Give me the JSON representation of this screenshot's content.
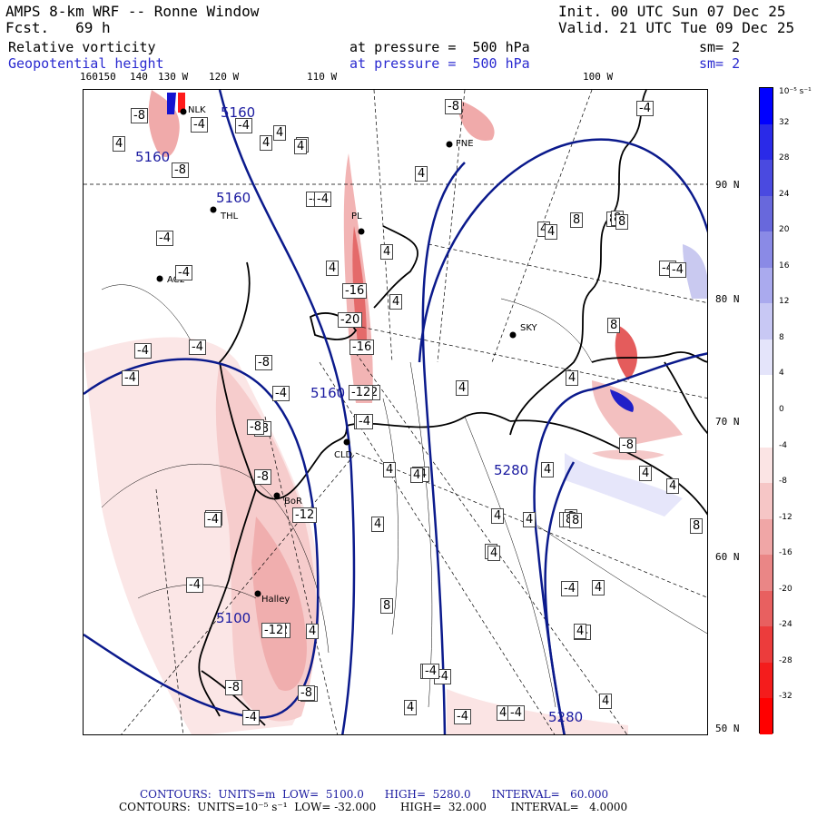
{
  "header": {
    "title": "AMPS 8-km WRF -- Ronne Window",
    "forecast": "Fcst.   69 h",
    "init": "Init. 00 UTC Sun 07 Dec 25",
    "valid": "Valid. 21 UTC Tue 09 Dec 25"
  },
  "fields": [
    {
      "name": "Relative vorticity",
      "level": "at pressure =  500 hPa",
      "sm": "sm= 2"
    },
    {
      "name": "Geopotential height",
      "level": "at pressure =  500 hPa",
      "sm": "sm= 2"
    }
  ],
  "lon_labels": [
    "160150",
    "140",
    "130 W",
    "120 W",
    "110 W",
    "100 W"
  ],
  "lat_labels": [
    "90 N",
    "80 N",
    "70 N",
    "60 N",
    "50 N"
  ],
  "colorbar": {
    "unit": "10⁻⁵ s⁻¹",
    "ticks": [
      "32",
      "28",
      "24",
      "20",
      "16",
      "12",
      "8",
      "4",
      "0",
      "-4",
      "-8",
      "-12",
      "-16",
      "-20",
      "-24",
      "-28",
      "-32"
    ],
    "colors": [
      "#0000ff",
      "#2a2ae8",
      "#4a4ae0",
      "#6868dc",
      "#8a8ae6",
      "#aaaaee",
      "#c8c8f4",
      "#e4e4fa",
      "#ffffff",
      "#ffffff",
      "#fbe4e4",
      "#f6c6c6",
      "#f0a6a6",
      "#ea8686",
      "#e86060",
      "#ec3c3c",
      "#f41c1c",
      "#ff0000"
    ]
  },
  "stations": [
    "NLK",
    "FNE",
    "THL",
    "AC2",
    "PL",
    "SKY",
    "CLD",
    "BoR",
    "Halley"
  ],
  "height_labels": [
    "5160",
    "5160",
    "5160",
    "5160",
    "5280",
    "5280",
    "5100"
  ],
  "vort_labels": [
    "-8",
    "4",
    "-4",
    "-4",
    "4",
    "4",
    "4",
    "-8",
    "-8",
    "-4",
    "-4",
    "-4",
    "-4",
    "-4",
    "-4",
    "-8",
    "-4",
    "-4",
    "-8",
    "-8",
    "-4",
    "4",
    "-4",
    "4",
    "-16",
    "-20",
    "-16",
    "-12",
    "-4",
    "4",
    "4",
    "4",
    "4",
    "-4",
    "4",
    "-4",
    "-12",
    "4",
    "8",
    "-8",
    "-12",
    "-4",
    "-8",
    "-4",
    "8",
    "-4",
    "-4",
    "-4",
    "4",
    "8",
    "4",
    "8",
    "8",
    "4",
    "4",
    "4",
    "4",
    "4",
    "-4",
    "-4",
    "4",
    "-4",
    "8",
    "-8",
    "4",
    "4",
    "4",
    "-4",
    "-4",
    "-8",
    "-12",
    "-4",
    "4",
    "-12",
    "4",
    "-8",
    "8",
    "-4",
    "8",
    "4",
    "4",
    "-4",
    "4",
    "8",
    "4",
    "8",
    "8",
    "-4"
  ],
  "footer": {
    "line1": "CONTOURS:  UNITS=m  LOW=  5100.0      HIGH=  5280.0      INTERVAL=   60.000",
    "line2": "CONTOURS:  UNITS=10⁻⁵ s⁻¹  LOW= -32.000       HIGH=  32.000       INTERVAL=   4.0000"
  }
}
